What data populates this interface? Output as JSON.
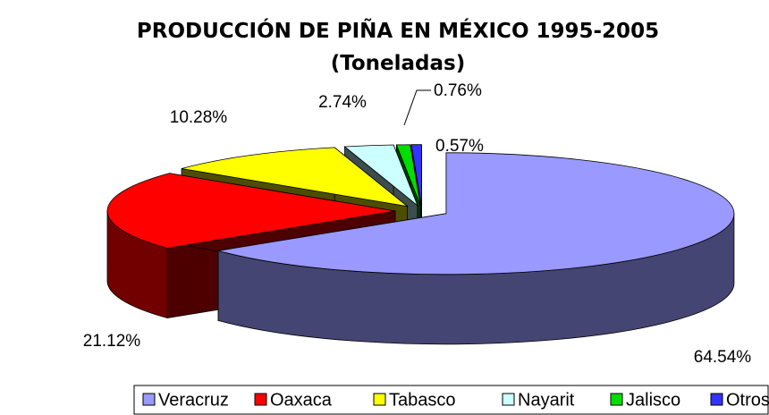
{
  "chart_data": {
    "type": "pie3d",
    "title": "PRODUCCIÓN DE PIÑA  EN MÉXICO 1995-2005",
    "subtitle": "(Toneladas)",
    "categories": [
      "Veracruz",
      "Oaxaca",
      "Tabasco",
      "Nayarit",
      "Jalisco",
      "Otros"
    ],
    "values": [
      64.54,
      21.12,
      10.28,
      2.74,
      0.76,
      0.57
    ],
    "value_labels": [
      "64.54%",
      "21.12%",
      "10.28%",
      "2.74%",
      "0.76%",
      "0.57%"
    ],
    "colors": [
      "#9999ff",
      "#ff0000",
      "#ffff00",
      "#ccffff",
      "#00dd00",
      "#3333ff"
    ],
    "legend": "bottom"
  }
}
